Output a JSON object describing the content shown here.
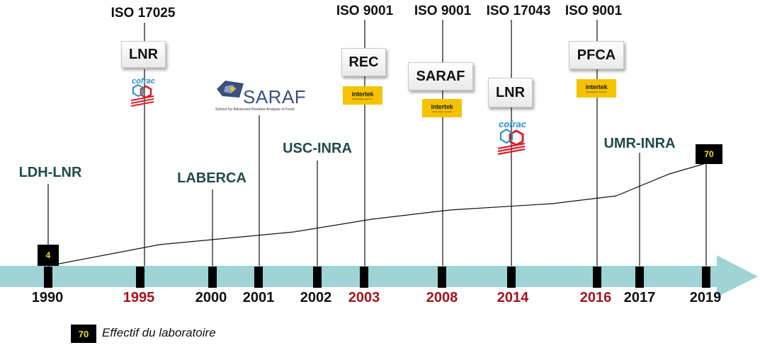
{
  "timeline": {
    "years": [
      {
        "label": "1990",
        "color": "black"
      },
      {
        "label": "1995",
        "color": "red"
      },
      {
        "label": "2000",
        "color": "black"
      },
      {
        "label": "2001",
        "color": "black"
      },
      {
        "label": "2002",
        "color": "black"
      },
      {
        "label": "2003",
        "color": "red"
      },
      {
        "label": "2008",
        "color": "red"
      },
      {
        "label": "2014",
        "color": "red"
      },
      {
        "label": "2016",
        "color": "red"
      },
      {
        "label": "2017",
        "color": "black"
      },
      {
        "label": "2019",
        "color": "black"
      }
    ],
    "arrow_color": "#9fd3d6",
    "red_color": "#a3141b",
    "label_color": "#1f4a4a"
  },
  "lab_names": {
    "ldh_lnr": "LDH-LNR",
    "laberca": "LABERCA",
    "usc_inra": "USC-INRA",
    "umr_inra": "UMR-INRA"
  },
  "certifications": {
    "iso_1995": "ISO 17025",
    "iso_2003": "ISO 9001",
    "iso_2008": "ISO 9001",
    "iso_2014": "ISO 17043",
    "iso_2016": "ISO 9001"
  },
  "boxes": {
    "lnr_1995": "LNR",
    "rec_2003": "REC",
    "saraf_2008": "SARAF",
    "lnr_2014": "LNR",
    "pfca_2016": "PFCA"
  },
  "logos": {
    "cofrac": "cofrac",
    "intertek": "intertek",
    "intertek_tagline": "Total Quality. Assured.",
    "saraf_word": "SARAF",
    "saraf_tagline": "School for Advanced Residue Analysis in Food"
  },
  "staff": {
    "start": "4",
    "end": "70"
  },
  "legend": {
    "badge": "70",
    "text": "Effectif du laboratoire"
  }
}
